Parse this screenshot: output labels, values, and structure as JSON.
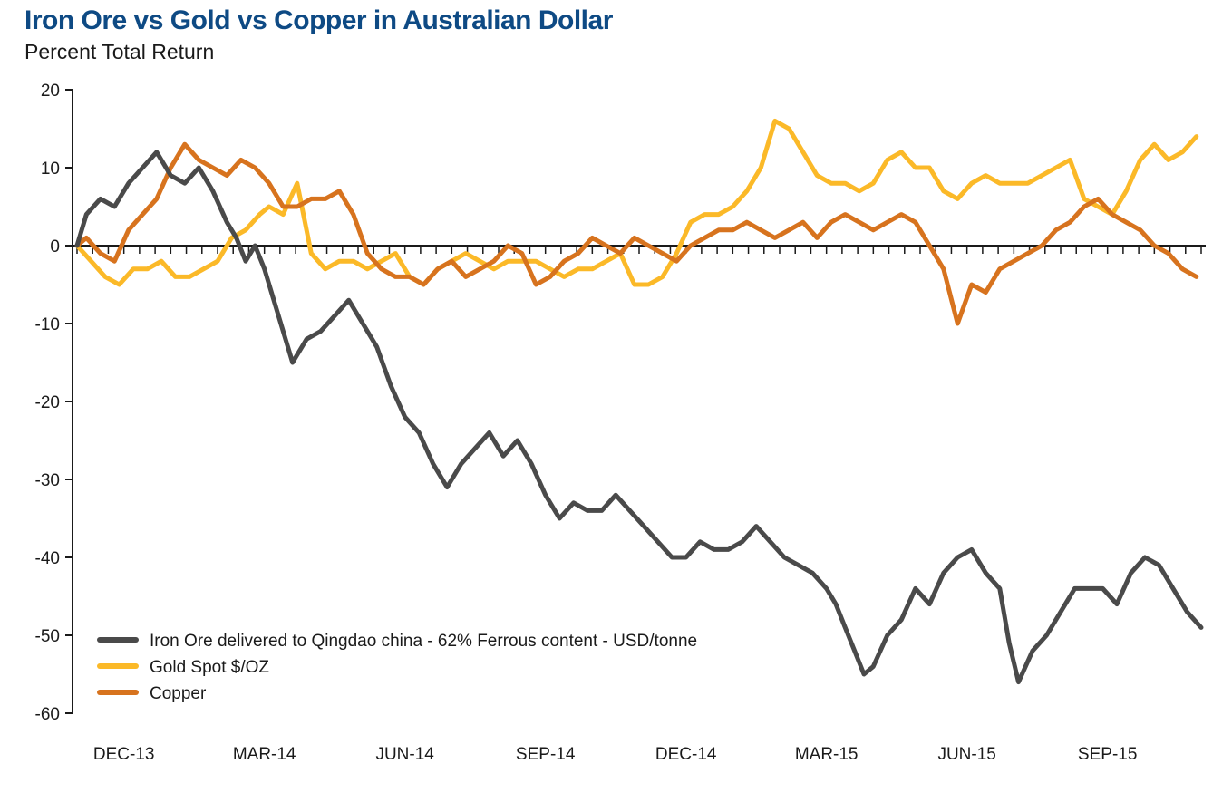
{
  "chart_data": {
    "type": "line",
    "title": "Iron Ore vs Gold vs Copper in Australian Dollar",
    "subtitle": "Percent Total Return",
    "xlabel": "",
    "ylabel": "",
    "ylim": [
      -60,
      20
    ],
    "yticks": [
      20,
      10,
      0,
      -10,
      -20,
      -30,
      -40,
      -50,
      -60
    ],
    "xlim": [
      0,
      24
    ],
    "xticks": [
      {
        "label": "DEC-13",
        "x": 1
      },
      {
        "label": "MAR-14",
        "x": 4
      },
      {
        "label": "JUN-14",
        "x": 7
      },
      {
        "label": "SEP-14",
        "x": 10
      },
      {
        "label": "DEC-14",
        "x": 13
      },
      {
        "label": "MAR-15",
        "x": 16
      },
      {
        "label": "JUN-15",
        "x": 19
      },
      {
        "label": "SEP-15",
        "x": 22
      }
    ],
    "minor_ticks_per_label": 3,
    "legend_position": "bottom-left",
    "series": [
      {
        "name": "Iron Ore delivered to Qingdao china - 62% Ferrous content - USD/tonne",
        "color": "#4a4a4a",
        "x": [
          0,
          0.2,
          0.5,
          0.8,
          1.1,
          1.4,
          1.7,
          2.0,
          2.3,
          2.6,
          2.9,
          3.2,
          3.4,
          3.6,
          3.8,
          4.0,
          4.3,
          4.6,
          4.9,
          5.2,
          5.5,
          5.8,
          6.1,
          6.4,
          6.7,
          7.0,
          7.3,
          7.6,
          7.9,
          8.2,
          8.5,
          8.8,
          9.1,
          9.4,
          9.7,
          10.0,
          10.3,
          10.6,
          10.9,
          11.2,
          11.5,
          11.8,
          12.1,
          12.4,
          12.7,
          13.0,
          13.3,
          13.6,
          13.9,
          14.2,
          14.5,
          14.8,
          15.1,
          15.4,
          15.7,
          16.0,
          16.2,
          16.4,
          16.6,
          16.8,
          17.0,
          17.3,
          17.6,
          17.9,
          18.2,
          18.5,
          18.8,
          19.1,
          19.4,
          19.7,
          19.9,
          20.1,
          20.4,
          20.7,
          21.0,
          21.3,
          21.6,
          21.9,
          22.2,
          22.5,
          22.8,
          23.1,
          23.4,
          23.7,
          24.0
        ],
        "values": [
          0,
          4,
          6,
          5,
          8,
          10,
          12,
          9,
          8,
          10,
          7,
          3,
          1,
          -2,
          0,
          -3,
          -9,
          -15,
          -12,
          -11,
          -9,
          -7,
          -10,
          -13,
          -18,
          -22,
          -24,
          -28,
          -31,
          -28,
          -26,
          -24,
          -27,
          -25,
          -28,
          -32,
          -35,
          -33,
          -34,
          -34,
          -32,
          -34,
          -36,
          -38,
          -40,
          -40,
          -38,
          -39,
          -39,
          -38,
          -36,
          -38,
          -40,
          -41,
          -42,
          -44,
          -46,
          -49,
          -52,
          -55,
          -54,
          -50,
          -48,
          -44,
          -46,
          -42,
          -40,
          -39,
          -42,
          -44,
          -51,
          -56,
          -52,
          -50,
          -47,
          -44,
          -44,
          -44,
          -46,
          -42,
          -40,
          -41,
          -44,
          -47,
          -49
        ]
      },
      {
        "name": "Gold Spot $/OZ",
        "color": "#fbb928",
        "x": [
          0,
          0.3,
          0.6,
          0.9,
          1.2,
          1.5,
          1.8,
          2.1,
          2.4,
          2.7,
          3.0,
          3.3,
          3.6,
          3.9,
          4.1,
          4.4,
          4.7,
          5.0,
          5.3,
          5.6,
          5.9,
          6.2,
          6.5,
          6.8,
          7.1,
          7.4,
          7.7,
          8.0,
          8.3,
          8.6,
          8.9,
          9.2,
          9.5,
          9.8,
          10.1,
          10.4,
          10.7,
          11.0,
          11.3,
          11.6,
          11.9,
          12.2,
          12.5,
          12.8,
          13.1,
          13.4,
          13.7,
          14.0,
          14.3,
          14.6,
          14.9,
          15.2,
          15.5,
          15.8,
          16.1,
          16.4,
          16.7,
          17.0,
          17.3,
          17.6,
          17.9,
          18.2,
          18.5,
          18.8,
          19.1,
          19.4,
          19.7,
          20.0,
          20.3,
          20.6,
          20.9,
          21.2,
          21.5,
          21.8,
          22.1,
          22.4,
          22.7,
          23.0,
          23.3,
          23.6,
          23.9
        ],
        "values": [
          0,
          -2,
          -4,
          -5,
          -3,
          -3,
          -2,
          -4,
          -4,
          -3,
          -2,
          1,
          2,
          4,
          5,
          4,
          8,
          -1,
          -3,
          -2,
          -2,
          -3,
          -2,
          -1,
          -4,
          -5,
          -3,
          -2,
          -1,
          -2,
          -3,
          -2,
          -2,
          -2,
          -3,
          -4,
          -3,
          -3,
          -2,
          -1,
          -5,
          -5,
          -4,
          -1,
          3,
          4,
          4,
          5,
          7,
          10,
          16,
          15,
          12,
          9,
          8,
          8,
          7,
          8,
          11,
          12,
          10,
          10,
          7,
          6,
          8,
          9,
          8,
          8,
          8,
          9,
          10,
          11,
          6,
          5,
          4,
          7,
          11,
          13,
          11,
          12,
          14
        ]
      },
      {
        "name": "Copper",
        "color": "#d7731e",
        "x": [
          0,
          0.2,
          0.5,
          0.8,
          1.1,
          1.4,
          1.7,
          2.0,
          2.3,
          2.6,
          2.9,
          3.2,
          3.5,
          3.8,
          4.1,
          4.4,
          4.7,
          5.0,
          5.3,
          5.6,
          5.9,
          6.2,
          6.5,
          6.8,
          7.1,
          7.4,
          7.7,
          8.0,
          8.3,
          8.6,
          8.9,
          9.2,
          9.5,
          9.8,
          10.1,
          10.4,
          10.7,
          11.0,
          11.3,
          11.6,
          11.9,
          12.2,
          12.5,
          12.8,
          13.1,
          13.4,
          13.7,
          14.0,
          14.3,
          14.6,
          14.9,
          15.2,
          15.5,
          15.8,
          16.1,
          16.4,
          16.7,
          17.0,
          17.3,
          17.6,
          17.9,
          18.2,
          18.5,
          18.8,
          19.1,
          19.4,
          19.7,
          20.0,
          20.3,
          20.6,
          20.9,
          21.2,
          21.5,
          21.8,
          22.1,
          22.4,
          22.7,
          23.0,
          23.3,
          23.6,
          23.9
        ],
        "values": [
          0,
          1,
          -1,
          -2,
          2,
          4,
          6,
          10,
          13,
          11,
          10,
          9,
          11,
          10,
          8,
          5,
          5,
          6,
          6,
          7,
          4,
          -1,
          -3,
          -4,
          -4,
          -5,
          -3,
          -2,
          -4,
          -3,
          -2,
          0,
          -1,
          -5,
          -4,
          -2,
          -1,
          1,
          0,
          -1,
          1,
          0,
          -1,
          -2,
          0,
          1,
          2,
          2,
          3,
          2,
          1,
          2,
          3,
          1,
          3,
          4,
          3,
          2,
          3,
          4,
          3,
          0,
          -3,
          -10,
          -5,
          -6,
          -3,
          -2,
          -1,
          0,
          2,
          3,
          5,
          6,
          4,
          3,
          2,
          0,
          -1,
          -3,
          -4
        ]
      }
    ]
  }
}
